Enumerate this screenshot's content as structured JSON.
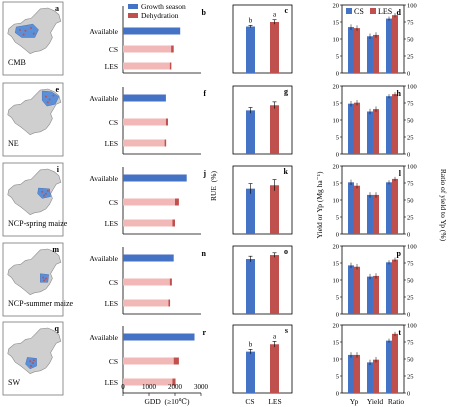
{
  "colors": {
    "growth_season": "#4472c4",
    "dehydration": "#c0504d",
    "les_bar": "#f2b8b8",
    "cs": "#4472c4",
    "les": "#c0504d",
    "map_land": "#cfcfcf",
    "map_region": "#5b8fd8",
    "map_site": "#c0504d"
  },
  "regions": [
    {
      "name": "CMB",
      "letters": [
        "a",
        "b",
        "c",
        "d"
      ],
      "sig": [
        "b",
        "a"
      ]
    },
    {
      "name": "NE",
      "letters": [
        "e",
        "f",
        "g",
        "h"
      ],
      "sig": [
        "",
        ""
      ]
    },
    {
      "name": "NCP-spring maize",
      "letters": [
        "i",
        "j",
        "k",
        "l"
      ],
      "sig": [
        "",
        ""
      ]
    },
    {
      "name": "NCP-summer maize",
      "letters": [
        "m",
        "n",
        "o",
        "p"
      ],
      "sig": [
        "",
        ""
      ]
    },
    {
      "name": "SW",
      "letters": [
        "q",
        "r",
        "s",
        "t"
      ],
      "sig": [
        "b",
        "a"
      ]
    }
  ],
  "legend": {
    "gdd": [
      "Growth season",
      "Dehydration"
    ],
    "yield": [
      "CS",
      "LES"
    ]
  },
  "axis_labels": {
    "gdd_x": "GDD  (≥10℃)",
    "rue_y": "RUE  (%)",
    "yield_left": "Yield or Yp (Mg ha⁻¹)",
    "ratio_right": "Ratio of yield to Yp (%)"
  },
  "chart_data": [
    {
      "type": "bar",
      "panel": "GDD",
      "categories": [
        "Available",
        "CS",
        "LES"
      ],
      "xlim": [
        0,
        3000
      ],
      "xticks": [
        "0",
        "1000",
        "2000",
        "3000"
      ],
      "regions": {
        "CMB": {
          "growth_season": [
            2200,
            1850,
            1800
          ],
          "dehydration": [
            0,
            100,
            60
          ]
        },
        "NE": {
          "growth_season": [
            1650,
            1650,
            1600
          ],
          "dehydration": [
            0,
            80,
            60
          ]
        },
        "NCP-spring maize": {
          "growth_season": [
            2450,
            2000,
            1900
          ],
          "dehydration": [
            0,
            150,
            100
          ]
        },
        "NCP-summer maize": {
          "growth_season": [
            1950,
            1800,
            1750
          ],
          "dehydration": [
            0,
            80,
            60
          ]
        },
        "SW": {
          "growth_season": [
            2750,
            1950,
            1900
          ],
          "dehydration": [
            0,
            200,
            120
          ]
        }
      }
    },
    {
      "type": "bar",
      "panel": "RUE",
      "categories": [
        "CS",
        "LES"
      ],
      "ylim": [
        0,
        1.2
      ],
      "ylabel": "RUE (%)",
      "regions": {
        "CMB": {
          "values": [
            0.82,
            0.9
          ],
          "errors": [
            0.02,
            0.04
          ]
        },
        "NE": {
          "values": [
            0.77,
            0.86
          ],
          "errors": [
            0.05,
            0.06
          ]
        },
        "NCP-spring maize": {
          "values": [
            0.8,
            0.86
          ],
          "errors": [
            0.09,
            0.1
          ]
        },
        "NCP-summer maize": {
          "values": [
            0.97,
            1.04
          ],
          "errors": [
            0.05,
            0.04
          ]
        },
        "SW": {
          "values": [
            0.73,
            0.86
          ],
          "errors": [
            0.04,
            0.05
          ]
        }
      }
    },
    {
      "type": "bar",
      "panel": "Yield",
      "categories": [
        "Yp",
        "Yield",
        "Ratio"
      ],
      "ylim_left": [
        0,
        20
      ],
      "ylim_right": [
        0,
        100
      ],
      "yticks_left": [
        "0",
        "5",
        "10",
        "15",
        "20"
      ],
      "yticks_right": [
        "0",
        "25",
        "50",
        "75",
        "100"
      ],
      "regions": {
        "CMB": {
          "cs": [
            13.5,
            10.8,
            80
          ],
          "les": [
            13.2,
            11.2,
            85
          ]
        },
        "NE": {
          "cs": [
            14.8,
            12.5,
            85
          ],
          "les": [
            15.1,
            13.2,
            88
          ]
        },
        "NCP-spring maize": {
          "cs": [
            15.2,
            11.5,
            76
          ],
          "les": [
            14.2,
            11.5,
            81
          ]
        },
        "NCP-summer maize": {
          "cs": [
            14.3,
            11.0,
            76
          ],
          "les": [
            13.9,
            11.2,
            80
          ]
        },
        "SW": {
          "cs": [
            11.2,
            9.0,
            77
          ],
          "les": [
            11.2,
            9.8,
            87
          ]
        }
      }
    }
  ]
}
